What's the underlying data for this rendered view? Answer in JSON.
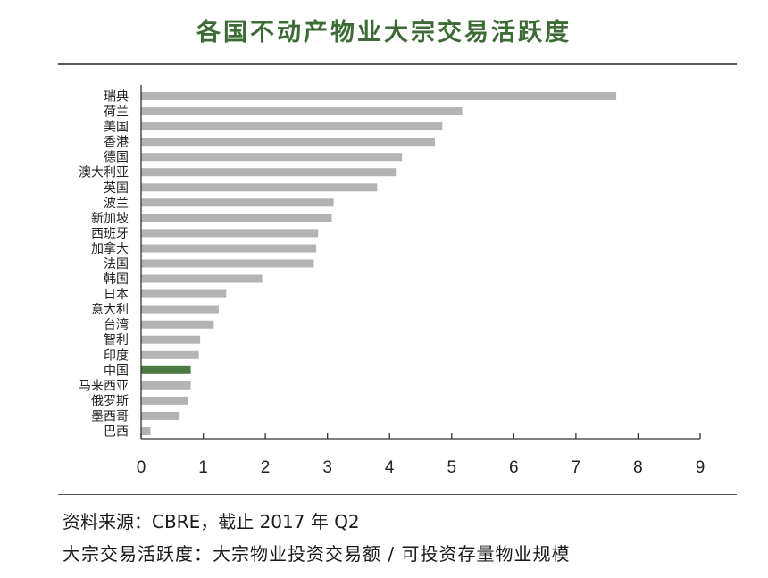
{
  "header": {
    "title": "各国不动产物业大宗交易活跃度"
  },
  "chart_data": {
    "type": "bar",
    "orientation": "horizontal",
    "title": "各国不动产物业大宗交易活跃度",
    "categories": [
      "瑞典",
      "荷兰",
      "美国",
      "香港",
      "德国",
      "澳大利亚",
      "英国",
      "波兰",
      "新加坡",
      "西班牙",
      "加拿大",
      "法国",
      "韩国",
      "日本",
      "意大利",
      "台湾",
      "智利",
      "印度",
      "中国",
      "马来西亚",
      "俄罗斯",
      "墨西哥",
      "巴西"
    ],
    "values": [
      7.65,
      5.17,
      4.85,
      4.73,
      4.2,
      4.1,
      3.8,
      3.1,
      3.07,
      2.85,
      2.82,
      2.78,
      1.95,
      1.37,
      1.25,
      1.17,
      0.95,
      0.93,
      0.8,
      0.8,
      0.75,
      0.62,
      0.15
    ],
    "highlight_category": "中国",
    "colors": {
      "bar": "#b3b3b3",
      "highlight": "#4d7a42",
      "axis": "#333333"
    },
    "xlim": [
      0,
      9
    ],
    "xticks": [
      "0",
      "1",
      "2",
      "3",
      "4",
      "5",
      "6",
      "7",
      "8",
      "9"
    ],
    "xlabel": "",
    "ylabel": "",
    "grid": false,
    "legend": "none"
  },
  "footer": {
    "source": "资料来源：CBRE，截止 2017 年 Q2",
    "note": "大宗交易活跃度：大宗物业投资交易额 / 可投资存量物业规模"
  }
}
